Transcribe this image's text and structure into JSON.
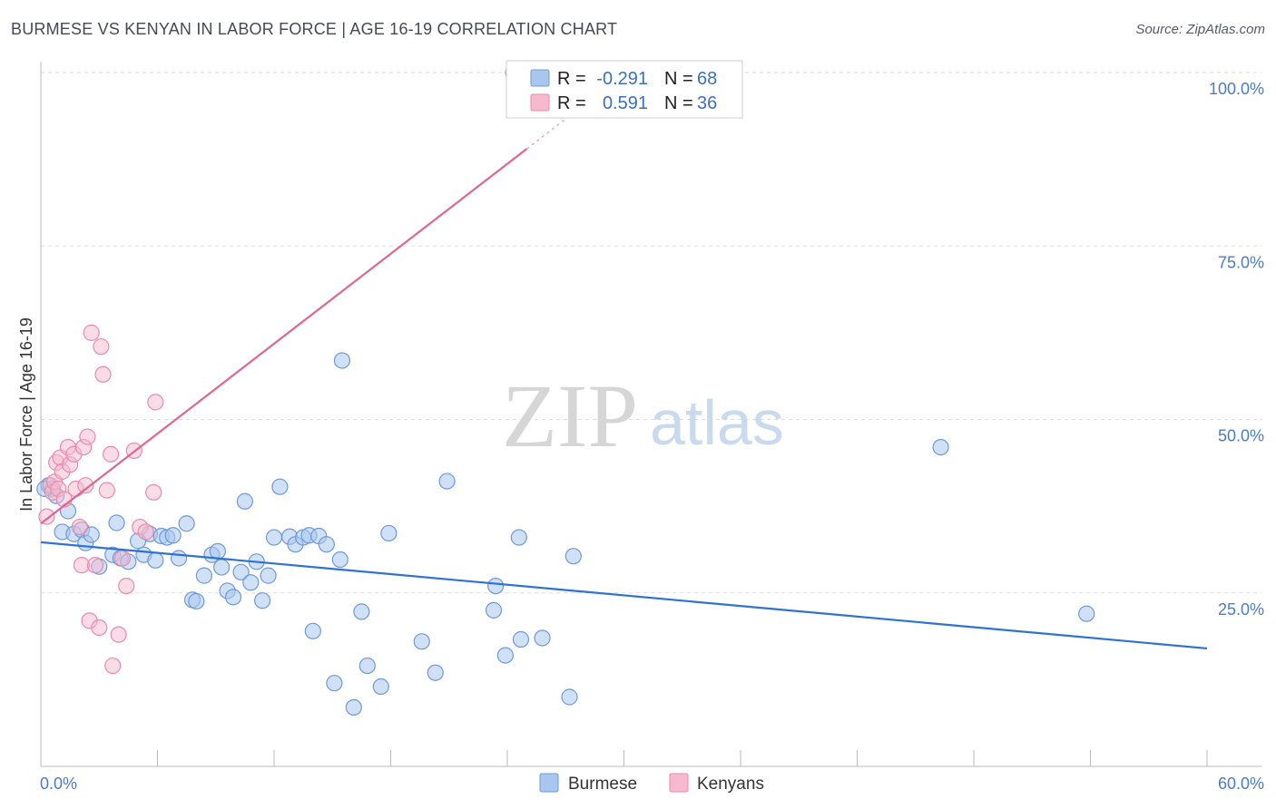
{
  "header": {
    "title": "BURMESE VS KENYAN IN LABOR FORCE | AGE 16-19 CORRELATION CHART",
    "source": "Source: ZipAtlas.com"
  },
  "watermark": {
    "zip": "ZIP",
    "atlas": "atlas"
  },
  "legend": {
    "rows": [
      {
        "r_label": "R =",
        "r_value": "-0.291",
        "n_label": "N =",
        "n_value": "68",
        "color": "#a9c6ef"
      },
      {
        "r_label": "R =",
        "r_value": "0.591",
        "n_label": "N =",
        "n_value": "36",
        "color": "#f6b9cd"
      }
    ]
  },
  "colors": {
    "burmese_fill": "#a9c6ef",
    "burmese_stroke": "#6d9ad8",
    "burmese_line": "#2f72d0",
    "kenyan_fill": "#f6b9cd",
    "kenyan_stroke": "#e98aaa",
    "kenyan_line": "#e06592",
    "grid": "#dddddd",
    "tick_label": "#4a7cc9"
  },
  "chart_data": {
    "type": "scatter",
    "title": "BURMESE VS KENYAN IN LABOR FORCE | AGE 16-19 CORRELATION CHART",
    "xlabel": "",
    "ylabel": "In Labor Force | Age 16-19",
    "xlim": [
      0,
      60
    ],
    "ylim": [
      0,
      100
    ],
    "x_tick_labels": [
      "0.0%",
      "60.0%"
    ],
    "y_ticks": [
      25,
      50,
      75,
      100
    ],
    "y_tick_labels": [
      "25.0%",
      "50.0%",
      "75.0%",
      "100.0%"
    ],
    "series": [
      {
        "name": "Burmese",
        "r": -0.291,
        "n": 68,
        "trend": {
          "x0": 0,
          "y0": 32.3,
          "x1": 60,
          "y1": 17.0
        },
        "points": [
          [
            0.4,
            40.5
          ],
          [
            0.6,
            40.0
          ],
          [
            0.8,
            39.0
          ],
          [
            1.1,
            33.8
          ],
          [
            1.4,
            36.8
          ],
          [
            1.7,
            33.5
          ],
          [
            2.1,
            34.1
          ],
          [
            2.3,
            32.2
          ],
          [
            2.6,
            33.4
          ],
          [
            3.0,
            28.8
          ],
          [
            3.7,
            30.5
          ],
          [
            3.9,
            35.1
          ],
          [
            4.1,
            30.0
          ],
          [
            4.5,
            29.5
          ],
          [
            5.0,
            32.5
          ],
          [
            5.3,
            30.5
          ],
          [
            5.6,
            33.5
          ],
          [
            5.9,
            29.7
          ],
          [
            6.2,
            33.2
          ],
          [
            6.5,
            33.0
          ],
          [
            6.8,
            33.3
          ],
          [
            7.1,
            30.0
          ],
          [
            7.5,
            35.0
          ],
          [
            7.8,
            24.0
          ],
          [
            8.0,
            23.8
          ],
          [
            8.4,
            27.5
          ],
          [
            8.8,
            30.5
          ],
          [
            9.1,
            31.0
          ],
          [
            9.3,
            28.7
          ],
          [
            9.6,
            25.3
          ],
          [
            9.9,
            24.4
          ],
          [
            10.3,
            28.0
          ],
          [
            10.5,
            38.2
          ],
          [
            10.8,
            26.5
          ],
          [
            11.1,
            29.5
          ],
          [
            11.4,
            23.9
          ],
          [
            11.7,
            27.5
          ],
          [
            12.0,
            33.0
          ],
          [
            12.3,
            40.3
          ],
          [
            12.8,
            33.1
          ],
          [
            13.1,
            32.0
          ],
          [
            13.5,
            33.0
          ],
          [
            13.8,
            33.3
          ],
          [
            14.3,
            33.2
          ],
          [
            14.7,
            32.0
          ],
          [
            15.4,
            29.8
          ],
          [
            15.1,
            12.0
          ],
          [
            16.1,
            8.5
          ],
          [
            15.5,
            58.5
          ],
          [
            16.5,
            22.3
          ],
          [
            16.8,
            14.5
          ],
          [
            17.5,
            11.5
          ],
          [
            17.9,
            33.6
          ],
          [
            14.0,
            19.5
          ],
          [
            19.6,
            18.0
          ],
          [
            20.3,
            13.5
          ],
          [
            20.9,
            41.1
          ],
          [
            23.4,
            26.0
          ],
          [
            23.3,
            22.5
          ],
          [
            23.9,
            16.0
          ],
          [
            24.6,
            33.0
          ],
          [
            24.7,
            18.3
          ],
          [
            25.8,
            18.5
          ],
          [
            27.2,
            10.0
          ],
          [
            27.4,
            30.3
          ],
          [
            46.3,
            46.0
          ],
          [
            53.8,
            22.0
          ],
          [
            0.2,
            40.0
          ]
        ]
      },
      {
        "name": "Kenyans",
        "r": 0.591,
        "n": 36,
        "trend": {
          "x0": 0,
          "y0": 35.0,
          "x1": 25.0,
          "y1": 89.0
        },
        "points": [
          [
            0.3,
            36.0
          ],
          [
            0.5,
            40.5
          ],
          [
            0.6,
            39.5
          ],
          [
            0.7,
            41.0
          ],
          [
            0.8,
            43.8
          ],
          [
            0.9,
            40.0
          ],
          [
            1.0,
            44.5
          ],
          [
            1.1,
            42.5
          ],
          [
            1.2,
            38.5
          ],
          [
            1.4,
            46.0
          ],
          [
            1.5,
            43.5
          ],
          [
            1.7,
            45.0
          ],
          [
            1.8,
            40.0
          ],
          [
            2.0,
            34.5
          ],
          [
            2.1,
            29.0
          ],
          [
            2.2,
            46.0
          ],
          [
            2.3,
            40.5
          ],
          [
            2.4,
            47.5
          ],
          [
            2.5,
            21.0
          ],
          [
            2.6,
            62.5
          ],
          [
            2.8,
            29.0
          ],
          [
            3.0,
            20.0
          ],
          [
            3.1,
            60.5
          ],
          [
            3.2,
            56.5
          ],
          [
            3.4,
            39.8
          ],
          [
            3.6,
            45.0
          ],
          [
            3.7,
            14.5
          ],
          [
            4.0,
            19.0
          ],
          [
            4.2,
            30.0
          ],
          [
            4.4,
            26.0
          ],
          [
            4.8,
            45.5
          ],
          [
            5.1,
            34.5
          ],
          [
            5.4,
            33.8
          ],
          [
            5.8,
            39.5
          ],
          [
            5.9,
            52.5
          ],
          [
            24.3,
            100.0
          ]
        ]
      }
    ]
  },
  "bottom_legend": [
    {
      "label": "Burmese",
      "color": "#a9c6ef"
    },
    {
      "label": "Kenyans",
      "color": "#f6b9cd"
    }
  ]
}
